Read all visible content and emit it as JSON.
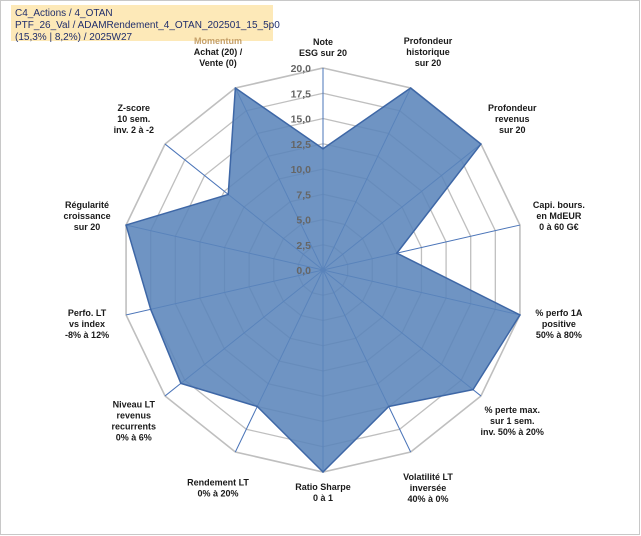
{
  "header": {
    "line1": "C4_Actions / 4_OTAN",
    "line2": "PTF_26_Val / ADAMRendement_4_OTAN_202501_15_5p0",
    "line3": "(15,3% | 8,2%) / 2025W27"
  },
  "colors": {
    "fill": "#5b85bb",
    "stroke": "#3e67a6",
    "grid": "#bfbfbf",
    "spoke": "#4a74b8",
    "highlight_label": "#c5a06a",
    "header_bg": "#fde9b8"
  },
  "chart_data": {
    "type": "radar",
    "title": "",
    "rmin": 0,
    "rmax": 20,
    "ticks": [
      "0,0",
      "2,5",
      "5,0",
      "7,5",
      "10,0",
      "12,5",
      "15,0",
      "17,5",
      "20,0"
    ],
    "axes": [
      {
        "label": [
          "Note",
          "ESG sur 20"
        ],
        "value": 12
      },
      {
        "label": [
          "Profondeur",
          "historique",
          "sur 20"
        ],
        "value": 20
      },
      {
        "label": [
          "Profondeur",
          "revenus",
          "sur 20"
        ],
        "value": 20
      },
      {
        "label": [
          "Capi. bours.",
          "en MdEUR",
          "0 à 60 G€"
        ],
        "value": 7.5
      },
      {
        "label": [
          "% perfo 1A",
          "positive",
          "50% à 80%"
        ],
        "value": 20
      },
      {
        "label": [
          "% perte max.",
          "sur 1 sem.",
          "inv. 50% à 20%"
        ],
        "value": 19
      },
      {
        "label": [
          "Volatilité LT",
          "inversée",
          "40% à 0%"
        ],
        "value": 15
      },
      {
        "label": [
          "Ratio Sharpe",
          "0 à 1"
        ],
        "value": 20
      },
      {
        "label": [
          "Rendement LT",
          "0% à 20%"
        ],
        "value": 15
      },
      {
        "label": [
          "Niveau LT",
          "revenus",
          "recurrents",
          "0% à 6%"
        ],
        "value": 18
      },
      {
        "label": [
          "Perfo. LT",
          "vs index",
          "-8% à 12%"
        ],
        "value": 17.5
      },
      {
        "label": [
          "Régularité",
          "croissance",
          "sur 20"
        ],
        "value": 20
      },
      {
        "label": [
          "Z-score",
          "10 sem.",
          "inv. 2 à -2"
        ],
        "value": 12
      },
      {
        "label": [
          "Momentum",
          "Achat (20) /",
          "Vente (0)"
        ],
        "value": 20,
        "first_line_highlight": true
      }
    ]
  }
}
